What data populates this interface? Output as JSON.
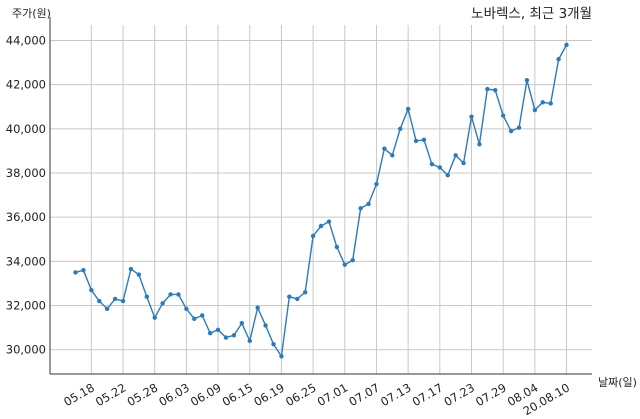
{
  "chart_data": {
    "type": "line",
    "title": "노바렉스, 최근 3개월",
    "xlabel": "날짜(일)",
    "ylabel": "주가(원)",
    "ylim": [
      28900,
      44700
    ],
    "grid": true,
    "y_ticks": [
      30000,
      32000,
      34000,
      36000,
      38000,
      40000,
      42000,
      44000
    ],
    "y_tick_labels": [
      "30,000",
      "32,000",
      "34,000",
      "36,000",
      "38,000",
      "40,000",
      "42,000",
      "44,000"
    ],
    "x_tick_labels": [
      "05.18",
      "05.22",
      "05.28",
      "06.03",
      "06.09",
      "06.15",
      "06.19",
      "06.25",
      "07.01",
      "07.07",
      "07.13",
      "07.17",
      "07.23",
      "07.29",
      "08.04",
      "20.08.10"
    ],
    "x_tick_indices": [
      2,
      6,
      10,
      14,
      18,
      22,
      26,
      30,
      34,
      38,
      42,
      46,
      50,
      54,
      58,
      62
    ],
    "series": [
      {
        "color": "#2b7bba",
        "values": [
          33500,
          33600,
          32700,
          32200,
          31850,
          32300,
          32200,
          33650,
          33400,
          32400,
          31450,
          32100,
          32500,
          32500,
          31850,
          31400,
          31550,
          30750,
          30900,
          30550,
          30650,
          31200,
          30400,
          31900,
          31100,
          30250,
          29700,
          32400,
          32300,
          32600,
          35150,
          35600,
          35800,
          34650,
          33850,
          34050,
          36400,
          36600,
          37500,
          39100,
          38800,
          40000,
          40900,
          39450,
          39500,
          38400,
          38250,
          37900,
          38800,
          38450,
          40550,
          39300,
          41800,
          41750,
          40600,
          39900,
          40050,
          42200,
          40850,
          41200,
          41150,
          43150,
          43800
        ]
      }
    ]
  }
}
